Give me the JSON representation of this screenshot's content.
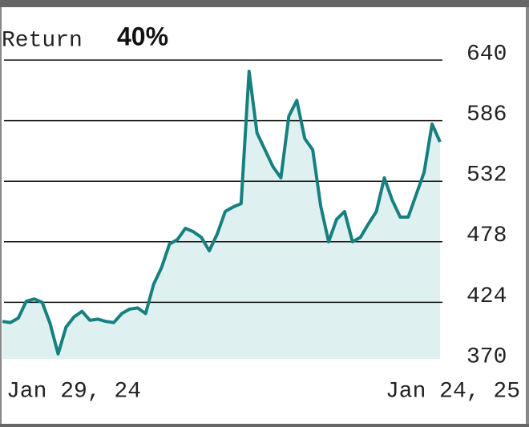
{
  "chart_data": {
    "type": "line",
    "title": "Return",
    "annotation": "40%",
    "categories": [
      "Jan 29, 24",
      null,
      null,
      null,
      null,
      null,
      null,
      null,
      null,
      null,
      null,
      null,
      null,
      null,
      null,
      null,
      null,
      null,
      null,
      null,
      null,
      null,
      null,
      null,
      null,
      null,
      null,
      null,
      null,
      null,
      null,
      null,
      null,
      null,
      null,
      null,
      null,
      null,
      null,
      null,
      null,
      null,
      null,
      null,
      null,
      null,
      null,
      null,
      null,
      null,
      null,
      null,
      null,
      null,
      null,
      "Jan 24, 25"
    ],
    "values": [
      407,
      406,
      410,
      425,
      427,
      424,
      405,
      378,
      402,
      411,
      416,
      408,
      409,
      407,
      406,
      414,
      418,
      419,
      414,
      440,
      455,
      476,
      480,
      490,
      487,
      482,
      470,
      485,
      505,
      509,
      512,
      630,
      575,
      560,
      545,
      535,
      590,
      604,
      570,
      560,
      510,
      478,
      498,
      505,
      478,
      482,
      494,
      505,
      535,
      515,
      500,
      500,
      520,
      540,
      583,
      567
    ],
    "color": "#168080",
    "fill": "#dff0f0",
    "ylim": [
      370,
      640
    ],
    "yticks": [
      370,
      424,
      478,
      532,
      586,
      640
    ],
    "grid": true
  }
}
